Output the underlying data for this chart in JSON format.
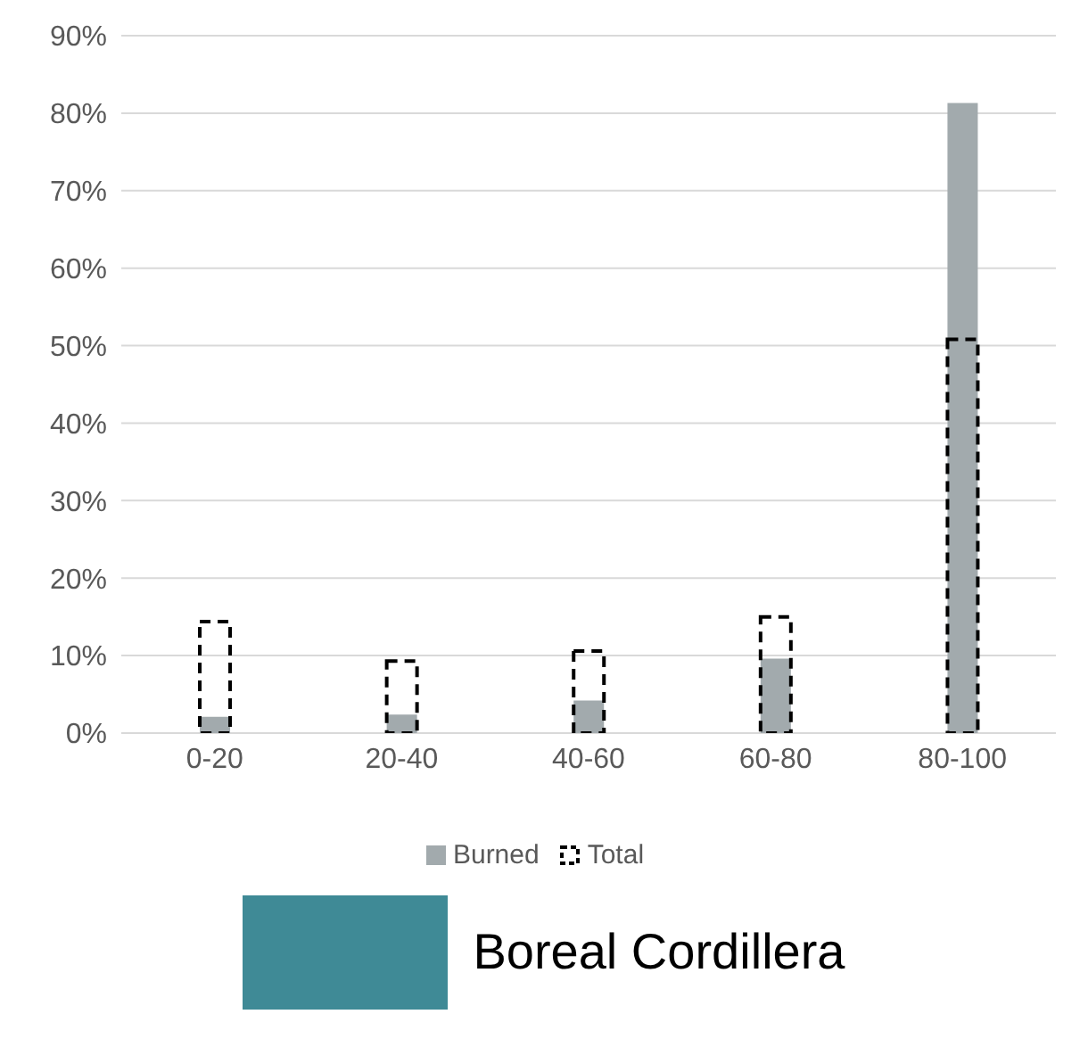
{
  "chart_data": {
    "type": "bar",
    "categories": [
      "0-20",
      "20-40",
      "40-60",
      "60-80",
      "80-100"
    ],
    "series": [
      {
        "name": "Burned",
        "color": "#a2aaad",
        "values": [
          2.1,
          2.4,
          4.2,
          9.6,
          81.3
        ]
      },
      {
        "name": "Total",
        "color": "#000000",
        "line_style": "dashed",
        "values": [
          14.4,
          9.3,
          10.6,
          15.0,
          50.8
        ]
      }
    ],
    "ylim": [
      0,
      90
    ],
    "yticks": [
      {
        "value": 0,
        "label": "0%"
      },
      {
        "value": 10,
        "label": "10%"
      },
      {
        "value": 20,
        "label": "20%"
      },
      {
        "value": 30,
        "label": "30%"
      },
      {
        "value": 40,
        "label": "40%"
      },
      {
        "value": 50,
        "label": "50%"
      },
      {
        "value": 60,
        "label": "60%"
      },
      {
        "value": 70,
        "label": "70%"
      },
      {
        "value": 80,
        "label": "80%"
      },
      {
        "value": 90,
        "label": "90%"
      }
    ],
    "grid": "y",
    "legend": "bottom",
    "annotations": [
      "Boreal Cordillera"
    ]
  }
}
